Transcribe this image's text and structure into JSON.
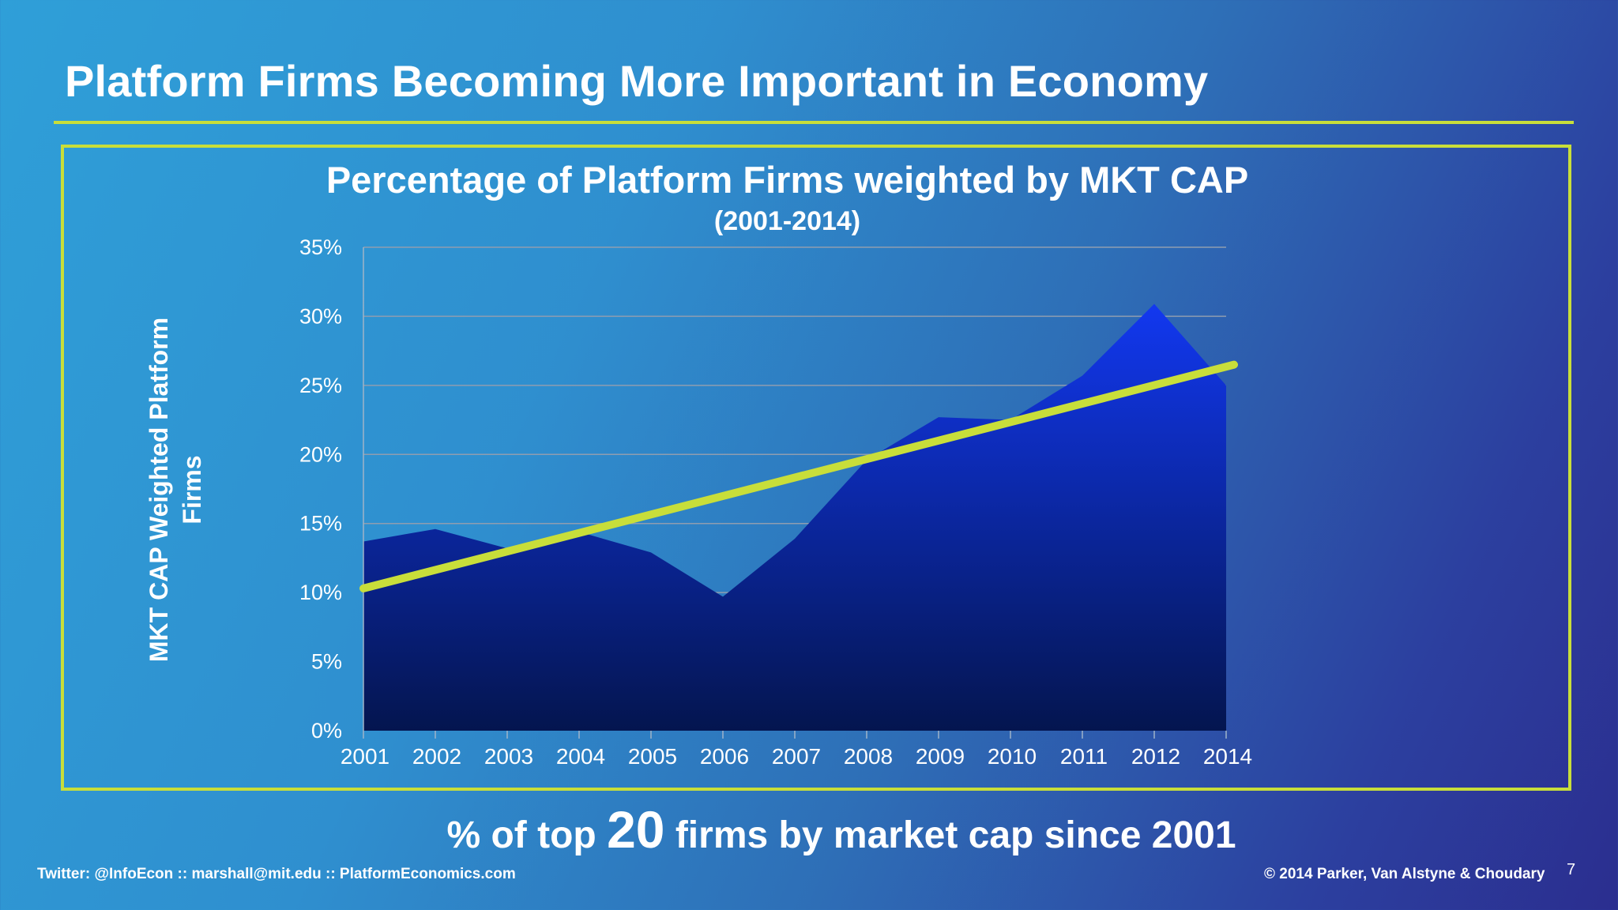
{
  "slide": {
    "title": "Platform Firms Becoming More Important in Economy",
    "caption_pre": "% of top ",
    "caption_num": "20",
    "caption_post": " firms by market cap since 2001",
    "footer_left": "Twitter: @InfoEcon  ::  marshall@mit.edu  ::  PlatformEconomics.com",
    "footer_right": "© 2014 Parker, Van Alstyne & Choudary",
    "page_number": "7",
    "colors": {
      "accent": "#c8de3a",
      "area_top": "#1238f0",
      "area_bottom": "#04154f",
      "trend": "#c8de3a"
    }
  },
  "chart_data": {
    "type": "area",
    "title": "Percentage of Platform Firms weighted by MKT CAP",
    "subtitle": "(2001-2014)",
    "ylabel": "MKT CAP Weighted Platform Firms",
    "xlabel": "",
    "categories": [
      "2001",
      "2002",
      "2003",
      "2004",
      "2005",
      "2006",
      "2007",
      "2008",
      "2009",
      "2010",
      "2011",
      "2012",
      "2014"
    ],
    "series": [
      {
        "values": [
          13.7,
          14.6,
          13.2,
          14.4,
          12.9,
          9.7,
          13.9,
          19.6,
          22.7,
          22.5,
          25.7,
          30.9,
          25.0
        ]
      }
    ],
    "trendline": {
      "start": 10.3,
      "end": 26.5
    },
    "yticks": [
      "0%",
      "5%",
      "10%",
      "15%",
      "20%",
      "25%",
      "30%",
      "35%"
    ],
    "ylim": [
      0,
      35
    ],
    "grid": true,
    "legend": "none"
  }
}
